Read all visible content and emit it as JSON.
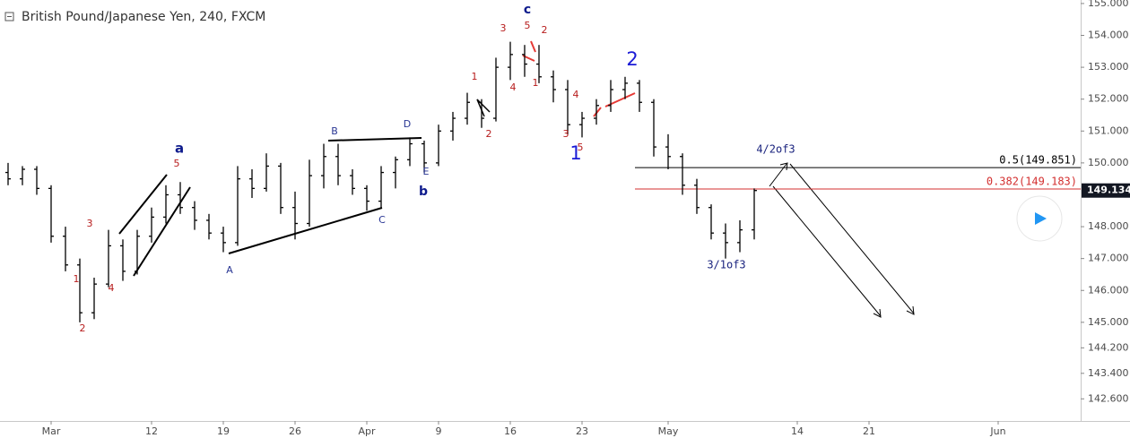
{
  "chart_data": {
    "type": "ohlc",
    "title": "British Pound/Japanese Yen, 240, FXCM",
    "color": "#000000",
    "x": [
      -3,
      -2,
      -1,
      0,
      1,
      2,
      3,
      4,
      5,
      6,
      7,
      8,
      9,
      10,
      11,
      12,
      13,
      14,
      15,
      16,
      17,
      18,
      19,
      20,
      21,
      22,
      23,
      24,
      25,
      26,
      27,
      28,
      29,
      30,
      31,
      32,
      33,
      34,
      35,
      36,
      37,
      38,
      39,
      40,
      41,
      42,
      43,
      44,
      45,
      46,
      47,
      48,
      49
    ],
    "open": [
      149.7,
      149.5,
      149.8,
      149.2,
      147.7,
      146.8,
      145.3,
      146.2,
      147.4,
      146.6,
      147.7,
      148.3,
      149.0,
      148.6,
      148.2,
      147.8,
      147.5,
      149.5,
      149.2,
      149.9,
      148.6,
      148.1,
      149.6,
      150.2,
      149.6,
      149.2,
      148.8,
      149.7,
      150.1,
      150.6,
      150.0,
      151.0,
      151.4,
      151.9,
      151.4,
      153.0,
      153.4,
      153.1,
      152.7,
      152.3,
      151.2,
      151.4,
      151.8,
      152.3,
      152.5,
      151.9,
      150.5,
      150.2,
      149.3,
      148.6,
      147.8,
      147.5,
      147.9
    ],
    "high": [
      150.0,
      149.9,
      149.9,
      149.3,
      148.0,
      147.0,
      146.4,
      147.9,
      147.6,
      147.9,
      148.6,
      149.3,
      149.4,
      148.8,
      148.4,
      148.0,
      149.9,
      149.8,
      150.3,
      150.0,
      149.1,
      150.1,
      150.6,
      150.6,
      149.8,
      149.3,
      149.9,
      150.2,
      150.8,
      150.7,
      151.2,
      151.6,
      152.2,
      152.0,
      153.3,
      153.8,
      153.7,
      153.7,
      152.9,
      152.6,
      151.6,
      152.0,
      152.6,
      152.7,
      152.6,
      152.0,
      150.9,
      150.3,
      149.5,
      148.7,
      148.1,
      148.2,
      149.2
    ],
    "low": [
      149.3,
      149.3,
      149.0,
      147.5,
      146.6,
      145.0,
      145.1,
      146.1,
      146.3,
      146.5,
      147.5,
      148.1,
      148.4,
      147.9,
      147.6,
      147.2,
      147.4,
      148.9,
      149.1,
      148.4,
      147.6,
      148.0,
      149.2,
      149.3,
      149.0,
      148.5,
      148.6,
      149.2,
      149.9,
      149.7,
      149.9,
      150.7,
      151.2,
      151.1,
      151.3,
      152.6,
      152.7,
      152.5,
      151.9,
      150.9,
      150.8,
      151.2,
      151.6,
      152.0,
      151.6,
      150.2,
      149.8,
      149.0,
      148.4,
      147.6,
      147.0,
      147.2,
      147.6
    ],
    "close": [
      149.5,
      149.8,
      149.2,
      147.7,
      146.8,
      145.3,
      146.2,
      147.4,
      146.6,
      147.7,
      148.3,
      149.0,
      148.6,
      148.2,
      147.8,
      147.5,
      149.5,
      149.2,
      149.9,
      148.6,
      148.1,
      149.6,
      150.2,
      149.6,
      149.2,
      148.8,
      149.7,
      150.1,
      150.6,
      150.0,
      151.0,
      151.4,
      151.9,
      151.4,
      153.0,
      153.4,
      153.1,
      152.7,
      152.3,
      151.2,
      151.4,
      151.8,
      152.3,
      152.5,
      151.9,
      150.5,
      150.2,
      149.3,
      148.6,
      147.8,
      147.5,
      147.9,
      149.134
    ],
    "xlim": [
      -3.5625,
      71.75
    ],
    "ylim": [
      142.13,
      155.11
    ],
    "xticks": [
      {
        "value": 0,
        "label": "Mar"
      },
      {
        "value": 7,
        "label": "12"
      },
      {
        "value": 12,
        "label": "19"
      },
      {
        "value": 17,
        "label": "26"
      },
      {
        "value": 22,
        "label": "Apr"
      },
      {
        "value": 27,
        "label": "9"
      },
      {
        "value": 32,
        "label": "16"
      },
      {
        "value": 37,
        "label": "23"
      },
      {
        "value": 43,
        "label": "May"
      },
      {
        "value": 52,
        "label": "14"
      },
      {
        "value": 57,
        "label": "21"
      },
      {
        "value": 66,
        "label": "Jun"
      }
    ],
    "yticks": [
      {
        "value": 155,
        "label": "155.000"
      },
      {
        "value": 154,
        "label": "154.000"
      },
      {
        "value": 153,
        "label": "153.000"
      },
      {
        "value": 152,
        "label": "152.000"
      },
      {
        "value": 151,
        "label": "151.000"
      },
      {
        "value": 150,
        "label": "150.000"
      },
      {
        "value": 148,
        "label": "148.000"
      },
      {
        "value": 147,
        "label": "147.000"
      },
      {
        "value": 146,
        "label": "146.000"
      },
      {
        "value": 145,
        "label": "145.000"
      },
      {
        "value": 144.2,
        "label": "144.200"
      },
      {
        "value": 143.4,
        "label": "143.400"
      },
      {
        "value": 142.6,
        "label": "142.600"
      }
    ],
    "grid": false,
    "last_price": 149.134,
    "levels": [
      {
        "label": "0.5(149.851)",
        "value": 149.851,
        "color": "#000000"
      },
      {
        "label": "0.382(149.183)",
        "value": 149.183,
        "color": "#d32f2f"
      }
    ],
    "annotations": [
      {
        "text": "1",
        "color": "#b71c1c"
      },
      {
        "text": "2",
        "color": "#b71c1c"
      },
      {
        "text": "3",
        "color": "#b71c1c"
      },
      {
        "text": "4",
        "color": "#b71c1c"
      },
      {
        "text": "5",
        "color": "#b71c1c"
      },
      {
        "text": "a",
        "color": "#0d1a8c"
      },
      {
        "text": "A",
        "color": "#283593"
      },
      {
        "text": "B",
        "color": "#283593"
      },
      {
        "text": "C",
        "color": "#283593"
      },
      {
        "text": "D",
        "color": "#283593"
      },
      {
        "text": "E",
        "color": "#283593"
      },
      {
        "text": "b",
        "color": "#0d1a8c"
      },
      {
        "text": "1",
        "color": "#b71c1c"
      },
      {
        "text": "2",
        "color": "#b71c1c"
      },
      {
        "text": "3",
        "color": "#b71c1c"
      },
      {
        "text": "4",
        "color": "#b71c1c"
      },
      {
        "text": "5",
        "color": "#b71c1c"
      },
      {
        "text": "c",
        "color": "#0d1a8c"
      },
      {
        "text": "1",
        "color": "#b71c1c"
      },
      {
        "text": "2",
        "color": "#b71c1c"
      },
      {
        "text": "3",
        "color": "#b71c1c"
      },
      {
        "text": "4",
        "color": "#b71c1c"
      },
      {
        "text": "5",
        "color": "#b71c1c"
      },
      {
        "text": "1",
        "color": "#1a1ad6"
      },
      {
        "text": "2",
        "color": "#1a1ad6"
      },
      {
        "text": "4/2of3",
        "color": "#1a237e"
      },
      {
        "text": "3/1of3",
        "color": "#1a237e"
      }
    ]
  }
}
